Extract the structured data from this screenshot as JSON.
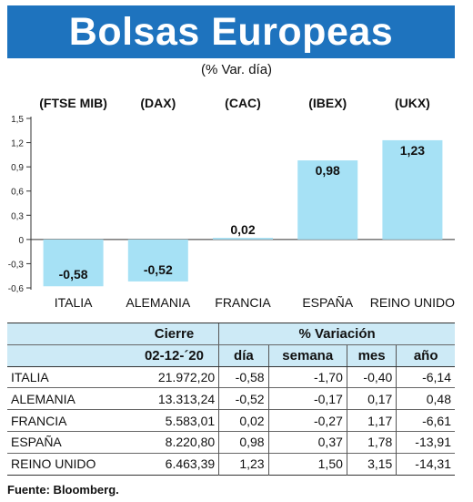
{
  "header": {
    "title": "Bolsas Europeas",
    "subtitle": "(% Var. día)"
  },
  "chart_data": {
    "type": "bar",
    "categories": [
      "ITALIA",
      "ALEMANIA",
      "FRANCIA",
      "ESPAÑA",
      "REINO UNIDO"
    ],
    "index_labels": [
      "(FTSE MIB)",
      "(DAX)",
      "(CAC)",
      "(IBEX)",
      "(UKX)"
    ],
    "values": [
      -0.58,
      -0.52,
      0.02,
      0.98,
      1.23
    ],
    "data_labels": [
      "-0,58",
      "-0,52",
      "0,02",
      "0,98",
      "1,23"
    ],
    "yticks": [
      1.5,
      1.2,
      0.9,
      0.6,
      0.3,
      0,
      -0.3,
      -0.6
    ],
    "ytick_labels": [
      "1,5",
      "1,2",
      "0,9",
      "0,6",
      "0,3",
      "0",
      "-0,3",
      "-0,6"
    ],
    "ylim": [
      -0.6,
      1.5
    ],
    "grid": false,
    "bar_color": "#a6e1f5"
  },
  "table": {
    "header_top": {
      "blank": "",
      "cierre": "Cierre",
      "variacion": "% Variación"
    },
    "header_sub": [
      "",
      "02-12-´20",
      "día",
      "semana",
      "mes",
      "año"
    ],
    "rows": [
      {
        "name": "ITALIA",
        "cierre": "21.972,20",
        "dia": "-0,58",
        "semana": "-1,70",
        "mes": "-0,40",
        "ano": "-6,14"
      },
      {
        "name": "ALEMANIA",
        "cierre": "13.313,24",
        "dia": "-0,52",
        "semana": "-0,17",
        "mes": "0,17",
        "ano": "0,48"
      },
      {
        "name": "FRANCIA",
        "cierre": "5.583,01",
        "dia": "0,02",
        "semana": "-0,27",
        "mes": "1,17",
        "ano": "-6,61"
      },
      {
        "name": "ESPAÑA",
        "cierre": "8.220,80",
        "dia": "0,98",
        "semana": "0,37",
        "mes": "1,78",
        "ano": "-13,91"
      },
      {
        "name": "REINO UNIDO",
        "cierre": "6.463,39",
        "dia": "1,23",
        "semana": "1,50",
        "mes": "3,15",
        "ano": "-14,31"
      }
    ]
  },
  "source": "Fuente: Bloomberg."
}
